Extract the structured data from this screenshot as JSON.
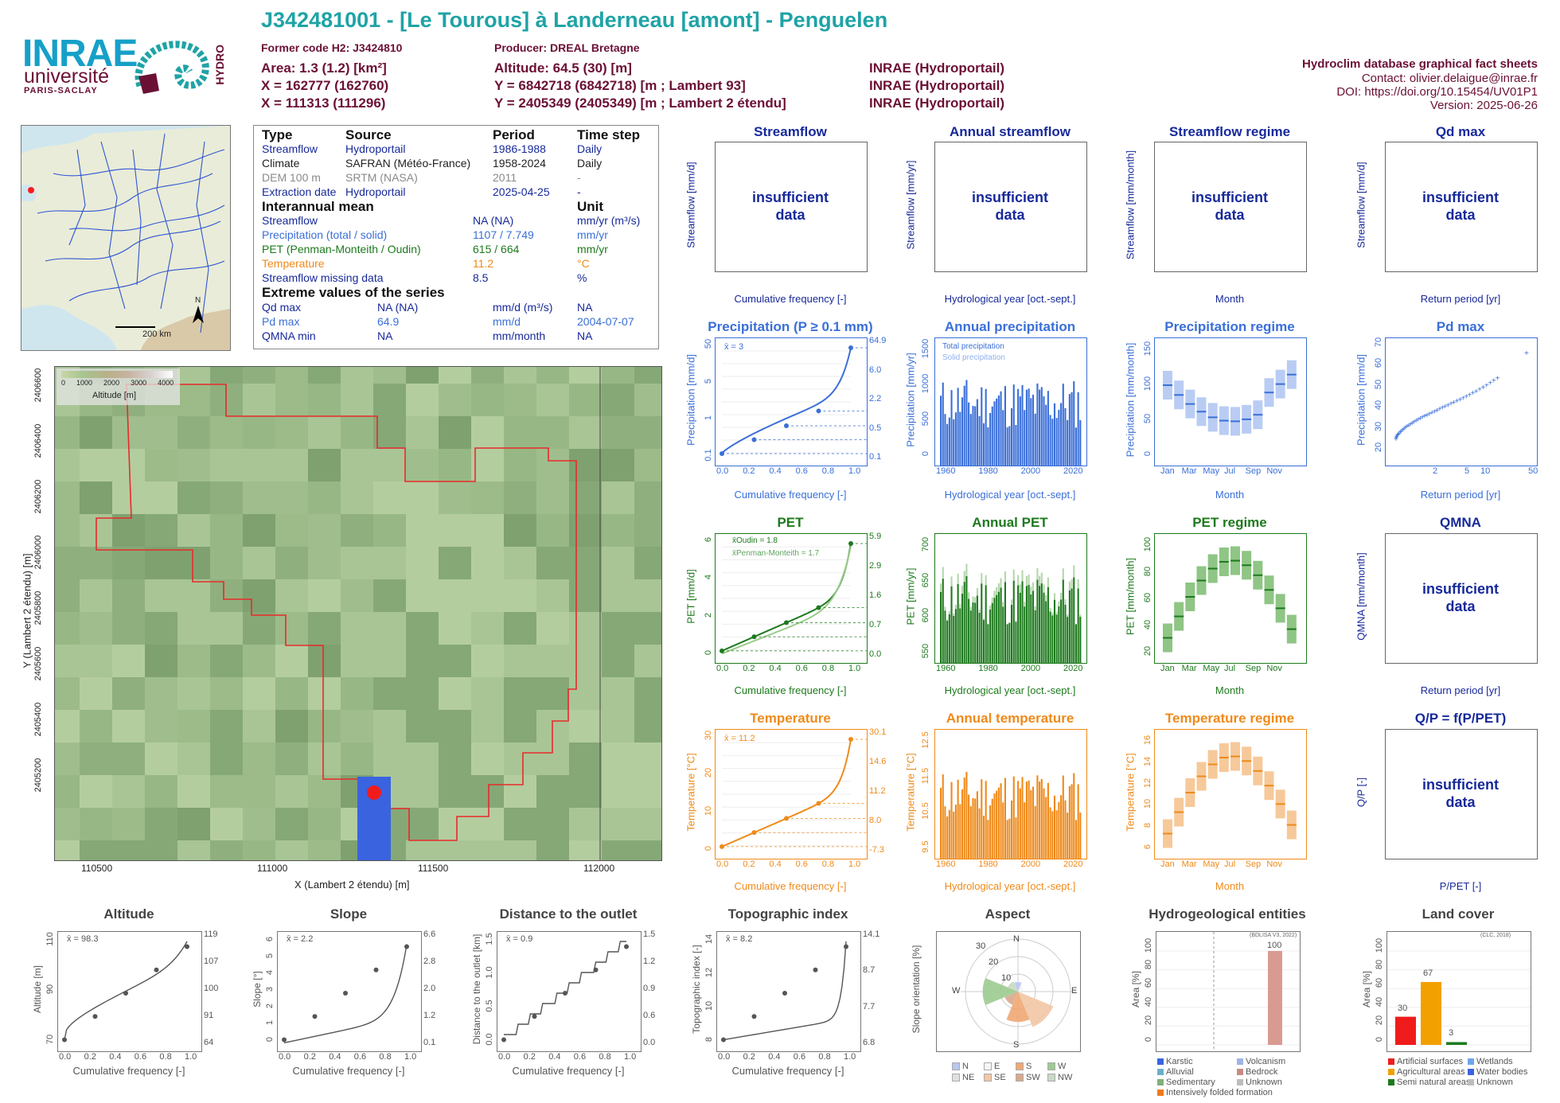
{
  "header": {
    "title": "J342481001 - [Le Tourous] à Landerneau [amont] - Penguelen",
    "former_code": "Former code H2: J3424810",
    "producer": "Producer: DREAL Bretagne",
    "area": "Area: 1.3 (1.2) [km²]",
    "x_l93": "X = 162777 (162760)",
    "x_l2": "X = 111313 (111296)",
    "altitude": "Altitude: 64.5 (30) [m]",
    "y_l93": "Y = 6842718 (6842718) [m ; Lambert 93]",
    "y_l2": "Y = 2405349 (2405349) [m ; Lambert 2 étendu]",
    "inrae1": "INRAE (Hydroportail)",
    "inrae2": "INRAE (Hydroportail)",
    "inrae3": "INRAE (Hydroportail)",
    "db": "Hydroclim database graphical fact sheets",
    "contact": "Contact: olivier.delaigue@inrae.fr",
    "doi": "DOI: https://doi.org/10.15454/UV01P1",
    "version": "Version: 2025-06-26"
  },
  "logos": {
    "inrae": "INRAE",
    "univ": "université",
    "ps": "PARIS-SACLAY",
    "hydro": "HYDRO"
  },
  "overview_map": {
    "scale": "200 km",
    "north": "N"
  },
  "info": {
    "h_type": "Type",
    "h_source": "Source",
    "h_period": "Period",
    "h_step": "Time step",
    "rows": [
      {
        "t": "Streamflow",
        "s": "Hydroportail",
        "p": "1986-1988",
        "ts": "Daily"
      },
      {
        "t": "Climate",
        "s": "SAFRAN (Météo-France)",
        "p": "1958-2024",
        "ts": "Daily"
      },
      {
        "t": "DEM 100 m",
        "s": "SRTM (NASA)",
        "p": "2011",
        "ts": "-"
      },
      {
        "t": "Extraction date",
        "s": "Hydroportail",
        "p": "2025-04-25",
        "ts": "-"
      }
    ],
    "h_mean": "Interannual mean",
    "h_unit": "Unit",
    "mean_rows": [
      {
        "n": "Streamflow",
        "v": "NA (NA)",
        "u": "mm/yr (m³/s)"
      },
      {
        "n": "Precipitation (total / solid)",
        "v": "1107 / 7.749",
        "u": "mm/yr"
      },
      {
        "n": "PET (Penman-Monteith / Oudin)",
        "v": "615 / 664",
        "u": "mm/yr"
      },
      {
        "n": "Temperature",
        "v": "11.2",
        "u": "°C"
      },
      {
        "n": "Streamflow missing data",
        "v": "8.5",
        "u": "%"
      }
    ],
    "h_ext": "Extreme values of the series",
    "ext_rows": [
      {
        "n": "Qd max",
        "v": "NA (NA)",
        "u": "mm/d (m³/s)",
        "d": "NA"
      },
      {
        "n": "Pd max",
        "v": "64.9",
        "u": "mm/d",
        "d": "2004-07-07"
      },
      {
        "n": "QMNA min",
        "v": "NA",
        "u": "mm/month",
        "d": "NA"
      }
    ]
  },
  "catchment_map": {
    "legend_title": "Altitude [m]",
    "legend_ticks": [
      "0",
      "1000",
      "2000",
      "3000",
      "4000"
    ],
    "xlabel": "X (Lambert 2 étendu) [m]",
    "ylabel": "Y (Lambert 2 étendu) [m]",
    "xticks": [
      "110500",
      "111000",
      "111500",
      "112000"
    ],
    "yticks": [
      "2406600",
      "2406400",
      "2406200",
      "2406000",
      "2405800",
      "2405600",
      "2405400",
      "2405200"
    ]
  },
  "panels": {
    "streamflow": {
      "title": "Streamflow",
      "ylabel": "Streamflow [mm/d]",
      "xlabel": "Cumulative frequency [-]",
      "msg": "insufficient data"
    },
    "annual_streamflow": {
      "title": "Annual streamflow",
      "ylabel": "Streamflow [mm/yr]",
      "xlabel": "Hydrological year [oct.-sept.]",
      "msg": "insufficient data"
    },
    "streamflow_regime": {
      "title": "Streamflow regime",
      "ylabel": "Streamflow [mm/month]",
      "xlabel": "Month",
      "msg": "insufficient data"
    },
    "qd_max": {
      "title": "Qd max",
      "ylabel": "Streamflow [mm/d]",
      "xlabel": "Return period [yr]",
      "msg": "insufficient data"
    },
    "precip": {
      "title": "Precipitation (P ≥ 0.1 mm)",
      "ylabel": "Precipitation [mm/d]",
      "xlabel": "Cumulative frequency [-]",
      "mean": "x̄ = 3",
      "right": [
        "64.9",
        "6.0",
        "2.2",
        "0.5",
        "0.1"
      ],
      "left": [
        "50",
        "5",
        "1",
        "0.1"
      ]
    },
    "annual_precip": {
      "title": "Annual precipitation",
      "ylabel": "Precipitation [mm/yr]",
      "xlabel": "Hydrological year [oct.-sept.]",
      "leg1": "Total precipitation",
      "leg2": "Solid precipitation",
      "yticks": [
        "1500",
        "1000",
        "500",
        "0"
      ]
    },
    "precip_regime": {
      "title": "Precipitation regime",
      "ylabel": "Precipitation [mm/month]",
      "xlabel": "Month",
      "yticks": [
        "150",
        "100",
        "50",
        "0"
      ]
    },
    "pd_max": {
      "title": "Pd max",
      "ylabel": "Precipitation [mm/d]",
      "xlabel": "Return period [yr]",
      "yticks": [
        "70",
        "60",
        "50",
        "40",
        "30",
        "20"
      ],
      "xticks": [
        "2",
        "5",
        "10",
        "50"
      ]
    },
    "pet": {
      "title": "PET",
      "ylabel": "PET [mm/d]",
      "xlabel": "Cumulative frequency [-]",
      "leg1": "x̄Oudin = 1.8",
      "leg2": "x̄Penman-Monteith = 1.7",
      "right": [
        "5.9",
        "2.9",
        "1.6",
        "0.7",
        "0.0"
      ],
      "left": [
        "6",
        "4",
        "2",
        "0"
      ]
    },
    "annual_pet": {
      "title": "Annual PET",
      "ylabel": "PET [mm/yr]",
      "xlabel": "Hydrological year [oct.-sept.]",
      "yticks": [
        "700",
        "650",
        "600",
        "550"
      ]
    },
    "pet_regime": {
      "title": "PET regime",
      "ylabel": "PET [mm/month]",
      "xlabel": "Month",
      "yticks": [
        "100",
        "80",
        "60",
        "40",
        "20"
      ]
    },
    "qmna": {
      "title": "QMNA",
      "ylabel": "QMNA [mm/month]",
      "xlabel": "Return period [yr]",
      "msg": "insufficient data"
    },
    "temp": {
      "title": "Temperature",
      "ylabel": "Temperature [°C]",
      "xlabel": "Cumulative frequency [-]",
      "mean": "x̄ = 11.2",
      "right": [
        "30.1",
        "14.6",
        "11.2",
        "8.0",
        "-7.3"
      ],
      "left": [
        "30",
        "20",
        "10",
        "0"
      ]
    },
    "annual_temp": {
      "title": "Annual temperature",
      "ylabel": "Temperature [°C]",
      "xlabel": "Hydrological year [oct.-sept.]",
      "yticks": [
        "12.5",
        "11.5",
        "10.5",
        "9.5"
      ]
    },
    "temp_regime": {
      "title": "Temperature regime",
      "ylabel": "Temperature [°C]",
      "xlabel": "Month",
      "yticks": [
        "16",
        "14",
        "12",
        "10",
        "8",
        "6"
      ]
    },
    "qp": {
      "title": "Q/P = f(P/PET)",
      "ylabel": "Q/P [-]",
      "xlabel": "P/PET [-]",
      "msg": "insufficient data"
    }
  },
  "common": {
    "freq_ticks": [
      "0.0",
      "0.2",
      "0.4",
      "0.6",
      "0.8",
      "1.0"
    ],
    "year_ticks": [
      "1960",
      "1980",
      "2000",
      "2020"
    ],
    "months": [
      "Jan",
      "Mar",
      "May",
      "Jul",
      "Sep",
      "Nov"
    ]
  },
  "bottom": {
    "altitude": {
      "title": "Altitude",
      "ylabel": "Altitude [m]",
      "xlabel": "Cumulative frequency [-]",
      "mean": "x̄ = 98.3",
      "right": [
        "119",
        "107",
        "100",
        "91",
        "64"
      ],
      "left": [
        "110",
        "90",
        "70"
      ]
    },
    "slope": {
      "title": "Slope",
      "ylabel": "Slope [°]",
      "xlabel": "Cumulative frequency [-]",
      "mean": "x̄ = 2.2",
      "right": [
        "6.6",
        "2.8",
        "2.0",
        "1.2",
        "0.1"
      ],
      "left": [
        "6",
        "5",
        "4",
        "3",
        "2",
        "1",
        "0"
      ]
    },
    "distance": {
      "title": "Distance to the outlet",
      "ylabel": "Distance to the outlet [km]",
      "xlabel": "Cumulative frequency [-]",
      "mean": "x̄ = 0.9",
      "right": [
        "1.5",
        "1.2",
        "0.9",
        "0.6",
        "0.0"
      ],
      "left": [
        "1.5",
        "1.0",
        "0.5",
        "0.0"
      ]
    },
    "topo": {
      "title": "Topographic index",
      "ylabel": "Topographic index [-]",
      "xlabel": "Cumulative frequency [-]",
      "mean": "x̄ = 8.2",
      "right": [
        "14.1",
        "8.7",
        "7.7",
        "6.8"
      ],
      "left": [
        "14",
        "12",
        "10",
        "8"
      ]
    },
    "aspect": {
      "title": "Aspect",
      "ylabel": "Slope orientation [%]",
      "dirs": [
        "N",
        "E",
        "S",
        "W"
      ],
      "rings": [
        "10",
        "20",
        "30"
      ],
      "legend": [
        "N",
        "E",
        "S",
        "W",
        "NE",
        "SE",
        "SW",
        "NW"
      ]
    },
    "hydrogeo": {
      "title": "Hydrogeological entities",
      "ylabel": "Area [%]",
      "source": "(BDLISA V3, 2022)",
      "value": "100",
      "yticks": [
        "100",
        "80",
        "60",
        "40",
        "20",
        "0"
      ],
      "legend": [
        "Karstic",
        "Volcanism",
        "Alluvial",
        "Bedrock",
        "Sedimentary",
        "Unknown",
        "Intensively folded formation"
      ]
    },
    "landcover": {
      "title": "Land cover",
      "ylabel": "Area [%]",
      "source": "(CLC, 2018)",
      "values": [
        "30",
        "67",
        "3"
      ],
      "yticks": [
        "100",
        "80",
        "60",
        "40",
        "20",
        "0"
      ],
      "legend": [
        "Artificial surfaces",
        "Wetlands",
        "Agricultural areas",
        "Water bodies",
        "Semi natural areas",
        "Unknown"
      ]
    }
  }
}
